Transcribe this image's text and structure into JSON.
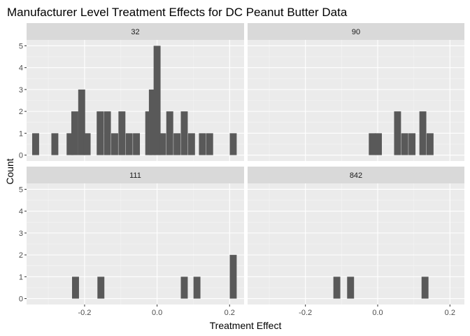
{
  "chart_data": {
    "type": "bar",
    "title": "Manufacturer Level Treatment Effects for DC Peanut Butter Data",
    "xlabel": "Treatment Effect",
    "ylabel": "Count",
    "xlim": [
      -0.36,
      0.24
    ],
    "ylim": [
      0,
      5
    ],
    "x_ticks": [
      -0.2,
      0.0,
      0.2
    ],
    "x_tick_labels": [
      "-0.2",
      "0.0",
      "0.2"
    ],
    "y_ticks": [
      0,
      1,
      2,
      3,
      4,
      5
    ],
    "y_tick_labels": [
      "0",
      "1",
      "2",
      "3",
      "4",
      "5"
    ],
    "bin_width": 0.01915,
    "grid": true,
    "bar_color": "#595959",
    "panel_background": "#ebebeb",
    "strip_background": "#d9d9d9",
    "facets": [
      {
        "label": "32",
        "bins": [
          {
            "x": -0.335,
            "count": 1
          },
          {
            "x": -0.282,
            "count": 1
          },
          {
            "x": -0.24,
            "count": 1
          },
          {
            "x": -0.227,
            "count": 2
          },
          {
            "x": -0.208,
            "count": 3
          },
          {
            "x": -0.193,
            "count": 1
          },
          {
            "x": -0.157,
            "count": 2
          },
          {
            "x": -0.137,
            "count": 2
          },
          {
            "x": -0.117,
            "count": 1
          },
          {
            "x": -0.097,
            "count": 2
          },
          {
            "x": -0.077,
            "count": 1
          },
          {
            "x": -0.057,
            "count": 1
          },
          {
            "x": -0.023,
            "count": 2
          },
          {
            "x": -0.013,
            "count": 3
          },
          {
            "x": 0.0,
            "count": 5
          },
          {
            "x": 0.015,
            "count": 1
          },
          {
            "x": 0.035,
            "count": 2
          },
          {
            "x": 0.055,
            "count": 1
          },
          {
            "x": 0.075,
            "count": 2
          },
          {
            "x": 0.095,
            "count": 1
          },
          {
            "x": 0.125,
            "count": 1
          },
          {
            "x": 0.145,
            "count": 1
          },
          {
            "x": 0.21,
            "count": 1
          }
        ]
      },
      {
        "label": "90",
        "bins": [
          {
            "x": -0.015,
            "count": 1
          },
          {
            "x": 0.002,
            "count": 1
          },
          {
            "x": 0.055,
            "count": 2
          },
          {
            "x": 0.075,
            "count": 1
          },
          {
            "x": 0.095,
            "count": 1
          },
          {
            "x": 0.125,
            "count": 2
          },
          {
            "x": 0.145,
            "count": 1
          }
        ]
      },
      {
        "label": "111",
        "bins": [
          {
            "x": -0.225,
            "count": 1
          },
          {
            "x": -0.155,
            "count": 1
          },
          {
            "x": 0.075,
            "count": 1
          },
          {
            "x": 0.11,
            "count": 1
          },
          {
            "x": 0.21,
            "count": 2
          }
        ]
      },
      {
        "label": "842",
        "bins": [
          {
            "x": -0.113,
            "count": 1
          },
          {
            "x": -0.075,
            "count": 1
          },
          {
            "x": 0.131,
            "count": 1
          }
        ]
      }
    ]
  }
}
